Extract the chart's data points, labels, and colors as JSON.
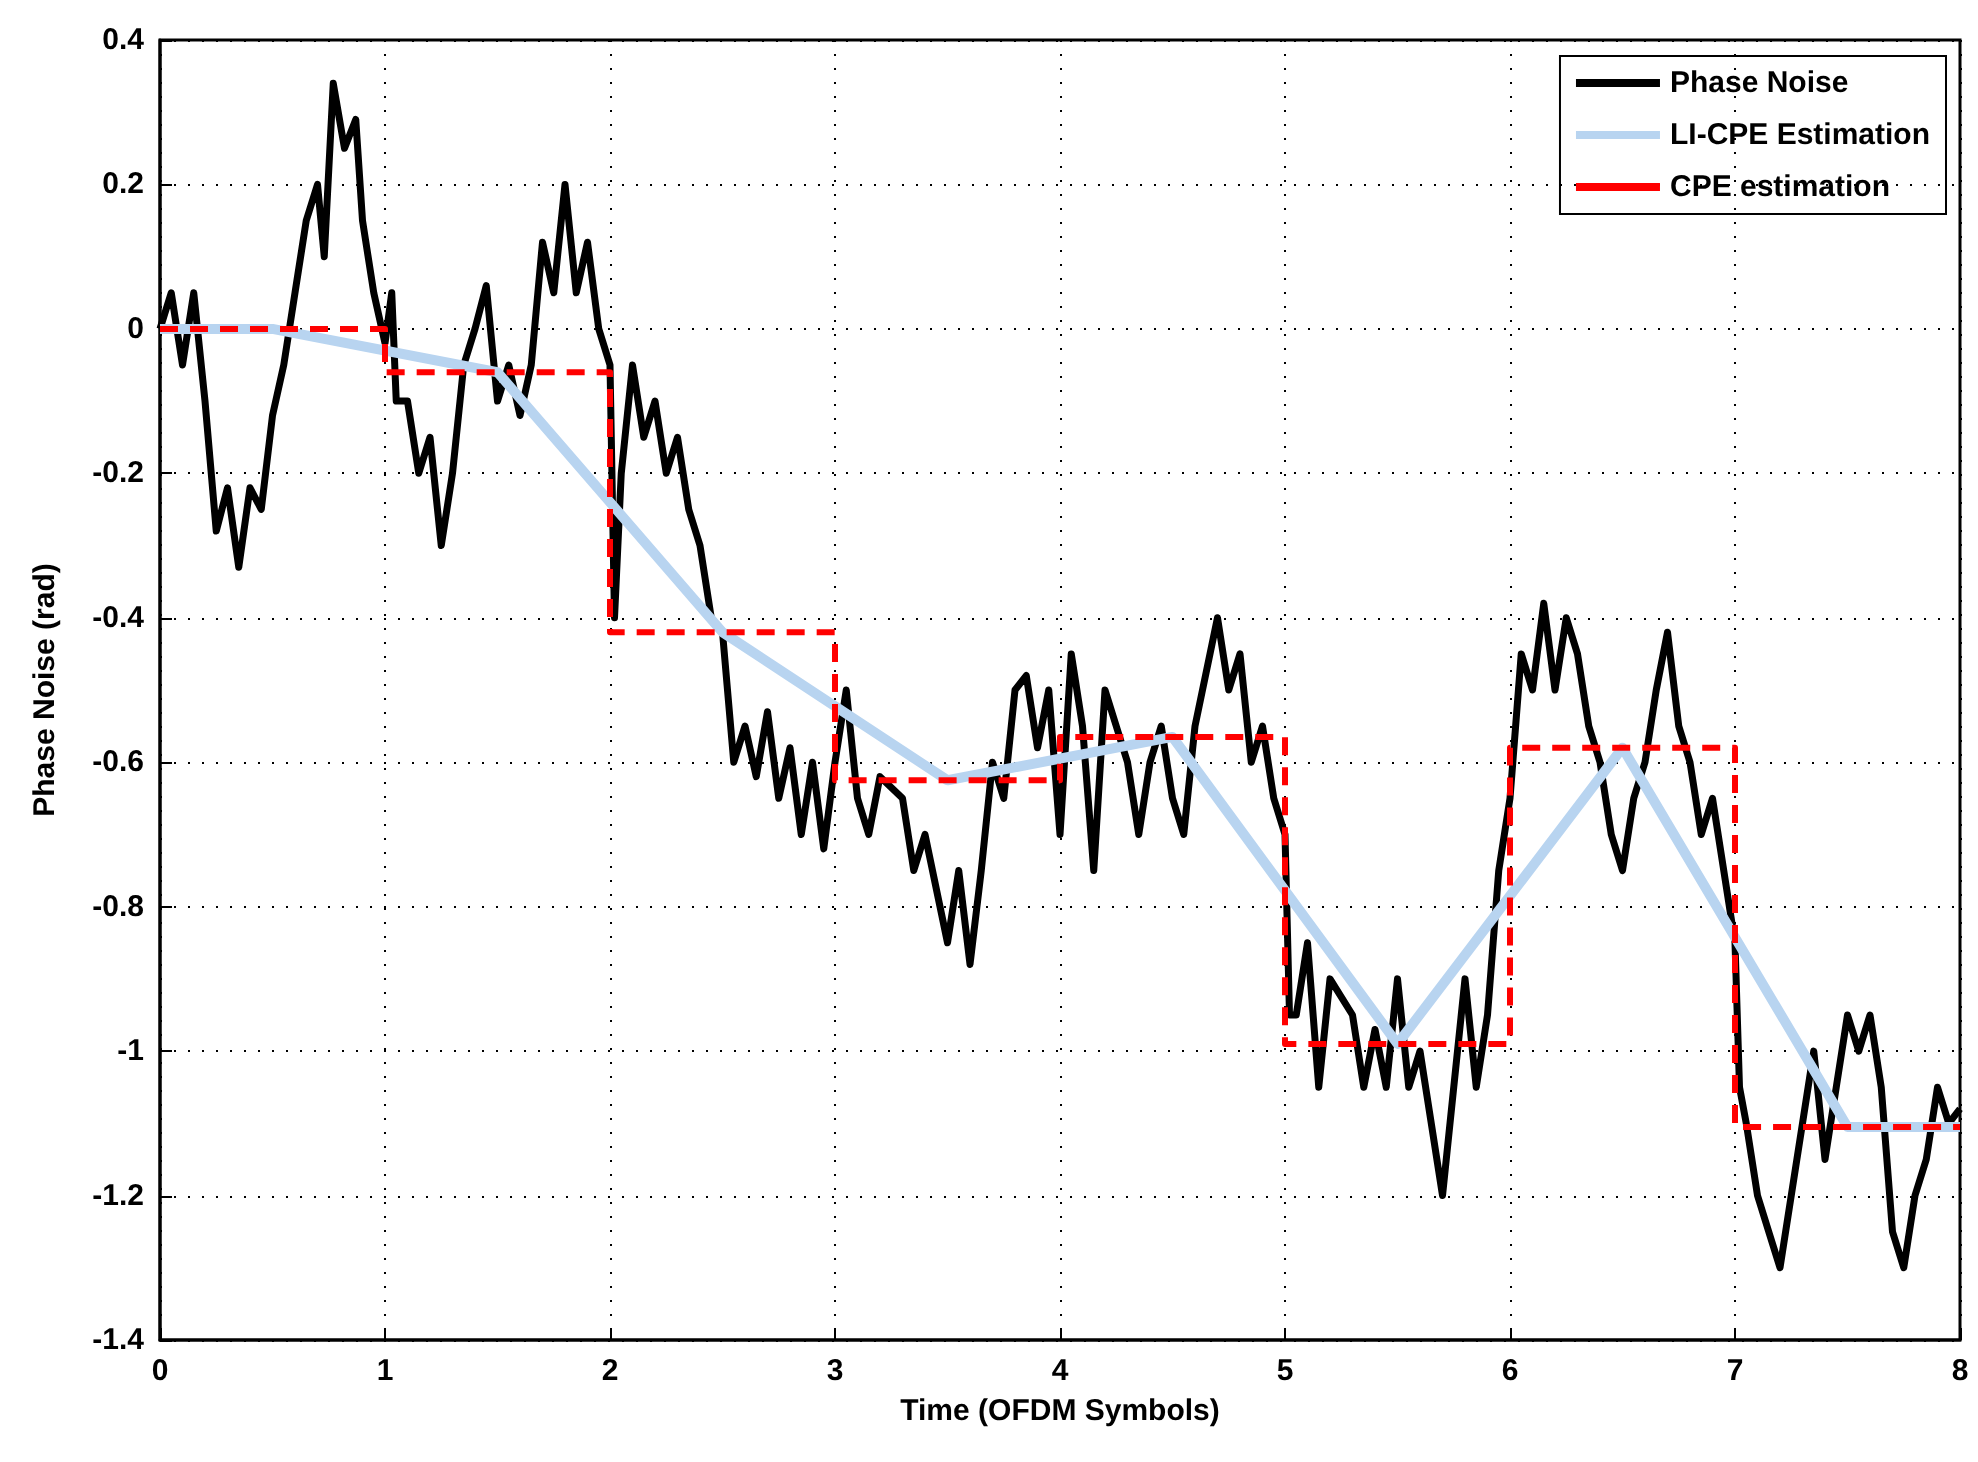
{
  "chart_data": {
    "type": "line",
    "xlabel": "Time (OFDM Symbols)",
    "ylabel": "Phase Noise (rad)",
    "xlim": [
      0,
      8
    ],
    "xticks": [
      0,
      1,
      2,
      3,
      4,
      5,
      6,
      7,
      8
    ],
    "ylim": [
      -1.4,
      0.4
    ],
    "yticks": [
      -1.4,
      -1.2,
      -1,
      -0.8,
      -0.6,
      -0.4,
      -0.2,
      0,
      0.2,
      0.4
    ],
    "grid": true,
    "legend": "top right",
    "marker": "none",
    "series": [
      {
        "name": "Phase Noise",
        "color": "#000000",
        "line_style": "solid",
        "x": [
          0,
          0.05,
          0.1,
          0.15,
          0.2,
          0.25,
          0.3,
          0.35,
          0.4,
          0.45,
          0.5,
          0.55,
          0.6,
          0.65,
          0.7,
          0.73,
          0.77,
          0.82,
          0.87,
          0.9,
          0.95,
          1.0,
          1.03,
          1.05,
          1.1,
          1.15,
          1.2,
          1.25,
          1.3,
          1.35,
          1.4,
          1.45,
          1.5,
          1.55,
          1.6,
          1.65,
          1.7,
          1.75,
          1.8,
          1.85,
          1.9,
          1.95,
          2.0,
          2.02,
          2.05,
          2.1,
          2.15,
          2.2,
          2.25,
          2.3,
          2.35,
          2.4,
          2.45,
          2.5,
          2.55,
          2.6,
          2.65,
          2.7,
          2.75,
          2.8,
          2.85,
          2.9,
          2.95,
          3.0,
          3.05,
          3.1,
          3.15,
          3.2,
          3.3,
          3.35,
          3.4,
          3.5,
          3.55,
          3.6,
          3.65,
          3.7,
          3.75,
          3.8,
          3.85,
          3.9,
          3.95,
          4.0,
          4.05,
          4.1,
          4.15,
          4.2,
          4.3,
          4.35,
          4.4,
          4.45,
          4.5,
          4.55,
          4.6,
          4.7,
          4.75,
          4.8,
          4.85,
          4.9,
          4.95,
          5.0,
          5.02,
          5.05,
          5.1,
          5.15,
          5.2,
          5.3,
          5.35,
          5.4,
          5.45,
          5.5,
          5.55,
          5.6,
          5.65,
          5.7,
          5.75,
          5.8,
          5.85,
          5.9,
          5.95,
          6.0,
          6.05,
          6.1,
          6.15,
          6.2,
          6.25,
          6.3,
          6.35,
          6.4,
          6.45,
          6.5,
          6.55,
          6.6,
          6.65,
          6.7,
          6.75,
          6.8,
          6.85,
          6.9,
          6.95,
          7.0,
          7.02,
          7.05,
          7.1,
          7.15,
          7.2,
          7.25,
          7.3,
          7.35,
          7.4,
          7.45,
          7.5,
          7.55,
          7.6,
          7.65,
          7.7,
          7.75,
          7.8,
          7.85,
          7.9,
          7.95,
          8.0
        ],
        "values": [
          0.0,
          0.05,
          -0.05,
          0.05,
          -0.1,
          -0.28,
          -0.22,
          -0.33,
          -0.22,
          -0.25,
          -0.12,
          -0.05,
          0.05,
          0.15,
          0.2,
          0.1,
          0.34,
          0.25,
          0.29,
          0.15,
          0.05,
          -0.02,
          0.05,
          -0.1,
          -0.1,
          -0.2,
          -0.15,
          -0.3,
          -0.2,
          -0.05,
          0.0,
          0.06,
          -0.1,
          -0.05,
          -0.12,
          -0.05,
          0.12,
          0.05,
          0.2,
          0.05,
          0.12,
          0.0,
          -0.05,
          -0.4,
          -0.2,
          -0.05,
          -0.15,
          -0.1,
          -0.2,
          -0.15,
          -0.25,
          -0.3,
          -0.4,
          -0.42,
          -0.6,
          -0.55,
          -0.62,
          -0.53,
          -0.65,
          -0.58,
          -0.7,
          -0.6,
          -0.72,
          -0.6,
          -0.5,
          -0.65,
          -0.7,
          -0.62,
          -0.65,
          -0.75,
          -0.7,
          -0.85,
          -0.75,
          -0.88,
          -0.75,
          -0.6,
          -0.65,
          -0.5,
          -0.48,
          -0.58,
          -0.5,
          -0.7,
          -0.45,
          -0.55,
          -0.75,
          -0.5,
          -0.6,
          -0.7,
          -0.6,
          -0.55,
          -0.65,
          -0.7,
          -0.55,
          -0.4,
          -0.5,
          -0.45,
          -0.6,
          -0.55,
          -0.65,
          -0.7,
          -0.95,
          -0.95,
          -0.85,
          -1.05,
          -0.9,
          -0.95,
          -1.05,
          -0.97,
          -1.05,
          -0.9,
          -1.05,
          -1.0,
          -1.1,
          -1.2,
          -1.05,
          -0.9,
          -1.05,
          -0.95,
          -0.75,
          -0.65,
          -0.45,
          -0.5,
          -0.38,
          -0.5,
          -0.4,
          -0.45,
          -0.55,
          -0.6,
          -0.7,
          -0.75,
          -0.65,
          -0.6,
          -0.5,
          -0.42,
          -0.55,
          -0.6,
          -0.7,
          -0.65,
          -0.75,
          -0.85,
          -1.05,
          -1.1,
          -1.2,
          -1.25,
          -1.3,
          -1.2,
          -1.1,
          -1.0,
          -1.15,
          -1.05,
          -0.95,
          -1.0,
          -0.95,
          -1.05,
          -1.25,
          -1.3,
          -1.2,
          -1.15,
          -1.05,
          -1.1,
          -1.08
        ]
      },
      {
        "name": "LI-CPE Estimation",
        "color": "#b8d4f0",
        "line_style": "solid",
        "x": [
          0,
          0.5,
          1.5,
          2.5,
          3.5,
          4.5,
          5.5,
          6.5,
          7.5,
          8
        ],
        "values": [
          0,
          0,
          -0.06,
          -0.42,
          -0.625,
          -0.565,
          -0.99,
          -0.58,
          -1.105,
          -1.105
        ]
      },
      {
        "name": "CPE estimation",
        "color": "#ff0000",
        "type": "step",
        "line_style": "dashed",
        "x": [
          0,
          1,
          2,
          3,
          4,
          5,
          6,
          7,
          8
        ],
        "values": [
          0,
          -0.06,
          -0.42,
          -0.625,
          -0.565,
          -0.99,
          -0.58,
          -1.105,
          -1.105
        ]
      }
    ]
  }
}
